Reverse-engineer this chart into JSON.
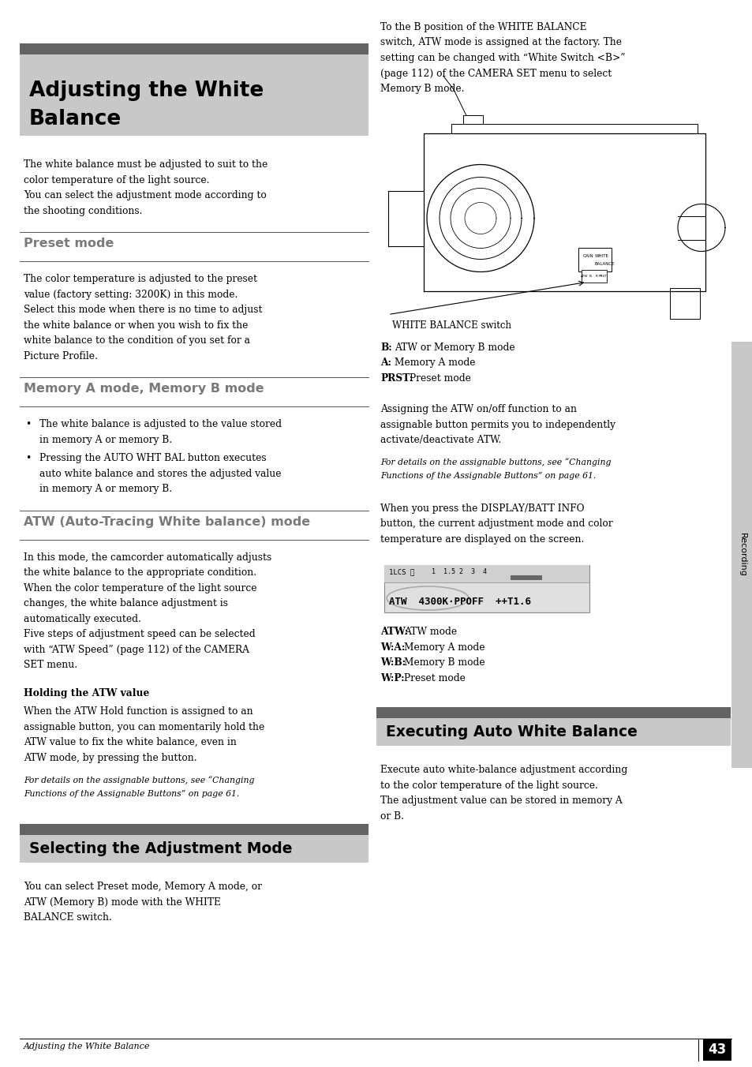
{
  "page_bg": "#ffffff",
  "page_width": 9.54,
  "page_height": 13.52,
  "dpi": 100,
  "header_title_line1": "Adjusting the White",
  "header_title_line2": "Balance",
  "header_bg": "#c8c8c8",
  "header_dark_strip": "#636363",
  "body_text_intro_lines": [
    "The white balance must be adjusted to suit to the",
    "color temperature of the light source.",
    "You can select the adjustment mode according to",
    "the shooting conditions."
  ],
  "preset_mode_header": "Preset mode",
  "preset_mode_text_lines": [
    "The color temperature is adjusted to the preset",
    "value (factory setting: 3200K) in this mode.",
    "Select this mode when there is no time to adjust",
    "the white balance or when you wish to fix the",
    "white balance to the condition of you set for a",
    "Picture Profile."
  ],
  "memory_mode_header": "Memory A mode, Memory B mode",
  "memory_mode_bullets": [
    [
      "The white balance is adjusted to the value stored",
      "in memory A or memory B."
    ],
    [
      "Pressing the AUTO WHT BAL button executes",
      "auto white balance and stores the adjusted value",
      "in memory A or memory B."
    ]
  ],
  "atw_mode_header": "ATW (Auto-Tracing White balance) mode",
  "atw_mode_text_lines": [
    "In this mode, the camcorder automatically adjusts",
    "the white balance to the appropriate condition.",
    "When the color temperature of the light source",
    "changes, the white balance adjustment is",
    "automatically executed.",
    "Five steps of adjustment speed can be selected",
    "with “ATW Speed” (page 112) of the CAMERA",
    "SET menu."
  ],
  "holding_atw_bold": "Holding the ATW value",
  "holding_atw_text_lines": [
    "When the ATW Hold function is assigned to an",
    "assignable button, you can momentarily hold the",
    "ATW value to fix the white balance, even in",
    "ATW mode, by pressing the button."
  ],
  "atw_italic_note_lines": [
    "For details on the assignable buttons, see “Changing",
    "Functions of the Assignable Buttons” on page 61."
  ],
  "right_col_intro_lines": [
    "To the B position of the WHITE BALANCE",
    "switch, ATW mode is assigned at the factory. The",
    "setting can be changed with “White Switch <B>”",
    "(page 112) of the CAMERA SET menu to select",
    "Memory B mode."
  ],
  "white_balance_switch_label": "WHITE BALANCE switch",
  "wb_labels": [
    [
      "B:",
      "ATW or Memory B mode"
    ],
    [
      "A:",
      "Memory A mode"
    ],
    [
      "PRST:",
      "Preset mode"
    ]
  ],
  "assign_text_lines": [
    "Assigning the ATW on/off function to an",
    "assignable button permits you to independently",
    "activate/deactivate ATW."
  ],
  "assign_italic_lines": [
    "For details on the assignable buttons, see “Changing",
    "Functions of the Assignable Buttons” on page 61."
  ],
  "display_text_lines": [
    "When you press the DISPLAY/BATT INFO",
    "button, the current adjustment mode and color",
    "temperature are displayed on the screen."
  ],
  "lcd_top_text": "1LCS ⓘ",
  "lcd_numbers": "1  1.5 2  3  4",
  "lcd_main_text": "ATW  4300K·PPOFF  ++T1.6",
  "atw_labels": [
    [
      "ATW:",
      "ATW mode"
    ],
    [
      "W:A:",
      "Memory A mode"
    ],
    [
      "W:B:",
      "Memory B mode"
    ],
    [
      "W:P:",
      "Preset mode"
    ]
  ],
  "selecting_header": "Selecting the Adjustment Mode",
  "selecting_text_lines": [
    "You can select Preset mode, Memory A mode, or",
    "ATW (Memory B) mode with the WHITE",
    "BALANCE switch."
  ],
  "executing_header": "Executing Auto White Balance",
  "executing_text_lines": [
    "Execute auto white-balance adjustment according",
    "to the color temperature of the light source.",
    "The adjustment value can be stored in memory A",
    "or B."
  ],
  "right_sidebar_text": "Recording",
  "right_sidebar_bg": "#c8c8c8",
  "footer_page": "43",
  "footer_left_text": "Adjusting the White Balance",
  "section_header_color": "#7a7a7a",
  "header_bg_color": "#c8c8c8",
  "header_strip_color": "#636363",
  "body_font_size": 8.8,
  "small_font_size": 7.8,
  "title_font_size": 19,
  "section_header_font_size": 11.5,
  "subheader_font_size": 13.5
}
